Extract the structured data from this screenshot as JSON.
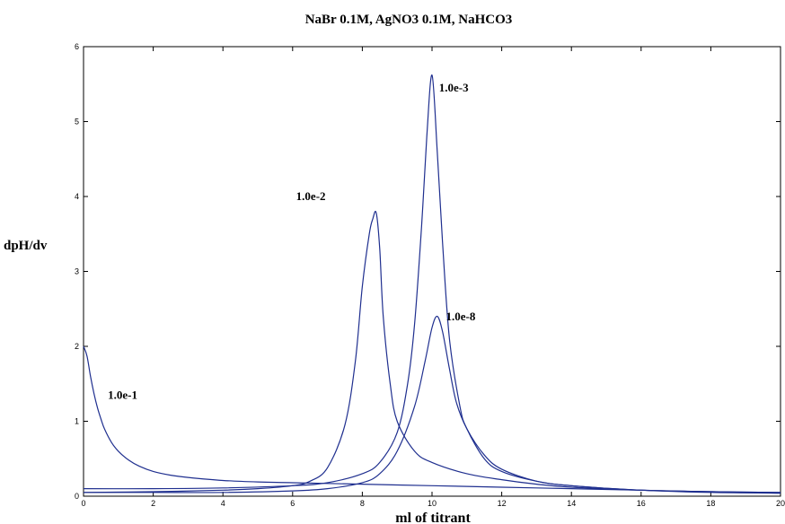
{
  "chart_data": {
    "type": "line",
    "title": "NaBr  0.1M, AgNO3  0.1M,  NaHCO3",
    "xlabel": "ml of titrant",
    "ylabel": "dpH/dv",
    "xlim": [
      0,
      20
    ],
    "ylim": [
      0,
      6
    ],
    "xticks": [
      0,
      2,
      4,
      6,
      8,
      10,
      12,
      14,
      16,
      18,
      20
    ],
    "yticks": [
      0,
      1,
      2,
      3,
      4,
      5,
      6
    ],
    "grid": false,
    "line_color": "#1f2f8f",
    "series": [
      {
        "label": "1.0e-1",
        "label_at": [
          0.7,
          1.3
        ],
        "x": [
          0,
          0.1,
          0.2,
          0.3,
          0.4,
          0.5,
          0.6,
          0.8,
          1.0,
          1.3,
          1.6,
          2.0,
          2.5,
          3,
          4,
          5,
          6,
          8,
          10,
          12,
          14,
          16,
          18,
          20
        ],
        "y": [
          2.0,
          1.87,
          1.6,
          1.37,
          1.18,
          1.03,
          0.9,
          0.72,
          0.6,
          0.48,
          0.4,
          0.33,
          0.28,
          0.25,
          0.21,
          0.19,
          0.18,
          0.16,
          0.14,
          0.12,
          0.1,
          0.08,
          0.06,
          0.05
        ]
      },
      {
        "label": "1.0e-2",
        "label_at": [
          6.1,
          3.95
        ],
        "x": [
          0,
          2,
          4,
          5,
          6,
          6.5,
          7,
          7.5,
          7.8,
          8.0,
          8.2,
          8.3,
          8.4,
          8.5,
          8.6,
          8.8,
          9.0,
          9.5,
          10,
          11,
          12,
          13,
          14,
          16,
          18,
          20
        ],
        "y": [
          0.05,
          0.06,
          0.08,
          0.1,
          0.14,
          0.2,
          0.38,
          0.95,
          1.8,
          2.8,
          3.5,
          3.7,
          3.78,
          3.3,
          2.4,
          1.5,
          1.0,
          0.6,
          0.45,
          0.3,
          0.22,
          0.16,
          0.12,
          0.08,
          0.06,
          0.05
        ]
      },
      {
        "label": "1.0e-3",
        "label_at": [
          10.2,
          5.4
        ],
        "x": [
          0,
          2,
          4,
          6,
          7,
          8,
          8.5,
          9,
          9.3,
          9.5,
          9.7,
          9.85,
          10.0,
          10.15,
          10.3,
          10.5,
          10.8,
          11,
          11.5,
          12,
          13,
          14,
          16,
          18,
          20
        ],
        "y": [
          0.1,
          0.1,
          0.11,
          0.14,
          0.18,
          0.3,
          0.45,
          0.85,
          1.5,
          2.3,
          3.6,
          4.8,
          5.62,
          4.6,
          3.4,
          2.1,
          1.2,
          0.9,
          0.5,
          0.33,
          0.2,
          0.14,
          0.08,
          0.06,
          0.04
        ]
      },
      {
        "label": "1.0e-8",
        "label_at": [
          10.4,
          2.35
        ],
        "x": [
          0,
          2,
          4,
          6,
          7,
          8,
          8.5,
          9,
          9.5,
          9.8,
          10.0,
          10.15,
          10.3,
          10.5,
          10.7,
          11,
          11.5,
          12,
          13,
          14,
          16,
          18,
          20
        ],
        "y": [
          0.05,
          0.05,
          0.05,
          0.07,
          0.1,
          0.18,
          0.3,
          0.6,
          1.2,
          1.8,
          2.25,
          2.4,
          2.2,
          1.7,
          1.25,
          0.9,
          0.55,
          0.36,
          0.2,
          0.14,
          0.08,
          0.05,
          0.04
        ]
      }
    ]
  }
}
